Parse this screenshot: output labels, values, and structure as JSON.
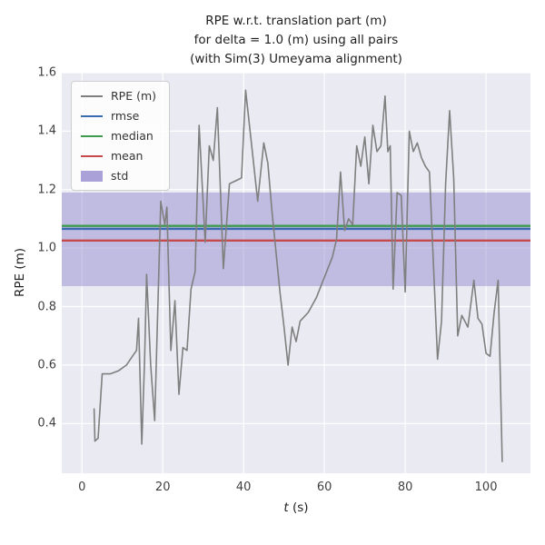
{
  "title_lines": [
    "RPE w.r.t. translation part (m)",
    "for delta = 1.0 (m) using all pairs",
    "(with Sim(3) Umeyama alignment)"
  ],
  "xlabel_italic": "t",
  "xlabel_rest": " (s)",
  "ylabel": "RPE (m)",
  "legend": [
    {
      "label": "RPE (m)",
      "type": "line",
      "color": "#7f7f7f"
    },
    {
      "label": "rmse",
      "type": "line",
      "color": "#3a6ab0"
    },
    {
      "label": "median",
      "type": "line",
      "color": "#3d9b4e"
    },
    {
      "label": "mean",
      "type": "line",
      "color": "#c64a4a"
    },
    {
      "label": "std",
      "type": "patch",
      "color": "#aaa1d8"
    }
  ],
  "chart_data": {
    "type": "line",
    "title": "RPE w.r.t. translation part (m) for delta = 1.0 (m) using all pairs (with Sim(3) Umeyama alignment)",
    "xlabel": "t (s)",
    "ylabel": "RPE (m)",
    "xlim": [
      -5,
      111
    ],
    "ylim": [
      0.23,
      1.6
    ],
    "xticks": [
      "0",
      "20",
      "40",
      "60",
      "80",
      "100"
    ],
    "yticks": [
      "0.4",
      "0.6",
      "0.8",
      "1.0",
      "1.2",
      "1.4",
      "1.6"
    ],
    "grid": true,
    "legend_position": "upper left",
    "colors": {
      "rpe": "#7f7f7f",
      "rmse": "#3a6ab0",
      "median": "#3d9b4e",
      "mean": "#c64a4a",
      "std": "#8f82cc",
      "background": "#eaeaf2",
      "grid": "#ffffff"
    },
    "stats": {
      "rmse": 1.066,
      "median": 1.076,
      "mean": 1.026,
      "std_band": [
        0.87,
        1.19
      ]
    },
    "series": [
      {
        "name": "RPE (m)",
        "points": [
          [
            3,
            0.45
          ],
          [
            3.2,
            0.34
          ],
          [
            4,
            0.35
          ],
          [
            5,
            0.57
          ],
          [
            7,
            0.57
          ],
          [
            9,
            0.58
          ],
          [
            11,
            0.6
          ],
          [
            12.5,
            0.63
          ],
          [
            13.5,
            0.65
          ],
          [
            14,
            0.76
          ],
          [
            14.8,
            0.33
          ],
          [
            15.5,
            0.62
          ],
          [
            16,
            0.91
          ],
          [
            17,
            0.6
          ],
          [
            18,
            0.41
          ],
          [
            19.5,
            1.16
          ],
          [
            20.5,
            1.08
          ],
          [
            21,
            1.14
          ],
          [
            22,
            0.65
          ],
          [
            23,
            0.82
          ],
          [
            24,
            0.5
          ],
          [
            25,
            0.66
          ],
          [
            26,
            0.65
          ],
          [
            27,
            0.86
          ],
          [
            28,
            0.92
          ],
          [
            29,
            1.42
          ],
          [
            30.5,
            1.02
          ],
          [
            31.5,
            1.35
          ],
          [
            32.5,
            1.3
          ],
          [
            33.5,
            1.48
          ],
          [
            35,
            0.93
          ],
          [
            36.5,
            1.22
          ],
          [
            38,
            1.23
          ],
          [
            39.5,
            1.24
          ],
          [
            40.5,
            1.54
          ],
          [
            42,
            1.35
          ],
          [
            43.5,
            1.16
          ],
          [
            45,
            1.36
          ],
          [
            46,
            1.29
          ],
          [
            47,
            1.13
          ],
          [
            49,
            0.85
          ],
          [
            50,
            0.73
          ],
          [
            51,
            0.6
          ],
          [
            52,
            0.73
          ],
          [
            53,
            0.68
          ],
          [
            54,
            0.75
          ],
          [
            56,
            0.78
          ],
          [
            58,
            0.83
          ],
          [
            60,
            0.9
          ],
          [
            62,
            0.97
          ],
          [
            63,
            1.03
          ],
          [
            64,
            1.26
          ],
          [
            65,
            1.06
          ],
          [
            66,
            1.1
          ],
          [
            67,
            1.08
          ],
          [
            68,
            1.35
          ],
          [
            69,
            1.28
          ],
          [
            70,
            1.38
          ],
          [
            71,
            1.22
          ],
          [
            72,
            1.42
          ],
          [
            73,
            1.33
          ],
          [
            74,
            1.35
          ],
          [
            75,
            1.52
          ],
          [
            75.7,
            1.33
          ],
          [
            76.3,
            1.35
          ],
          [
            77,
            0.86
          ],
          [
            78,
            1.19
          ],
          [
            79,
            1.18
          ],
          [
            80,
            0.85
          ],
          [
            81,
            1.4
          ],
          [
            82,
            1.33
          ],
          [
            83,
            1.36
          ],
          [
            84,
            1.31
          ],
          [
            85,
            1.28
          ],
          [
            86,
            1.26
          ],
          [
            88,
            0.62
          ],
          [
            89,
            0.75
          ],
          [
            90,
            1.22
          ],
          [
            91,
            1.47
          ],
          [
            92,
            1.24
          ],
          [
            93,
            0.7
          ],
          [
            94,
            0.77
          ],
          [
            95.5,
            0.73
          ],
          [
            97,
            0.89
          ],
          [
            98,
            0.76
          ],
          [
            99,
            0.74
          ],
          [
            100,
            0.64
          ],
          [
            101,
            0.63
          ],
          [
            102,
            0.78
          ],
          [
            103,
            0.89
          ],
          [
            104,
            0.27
          ]
        ]
      }
    ]
  }
}
